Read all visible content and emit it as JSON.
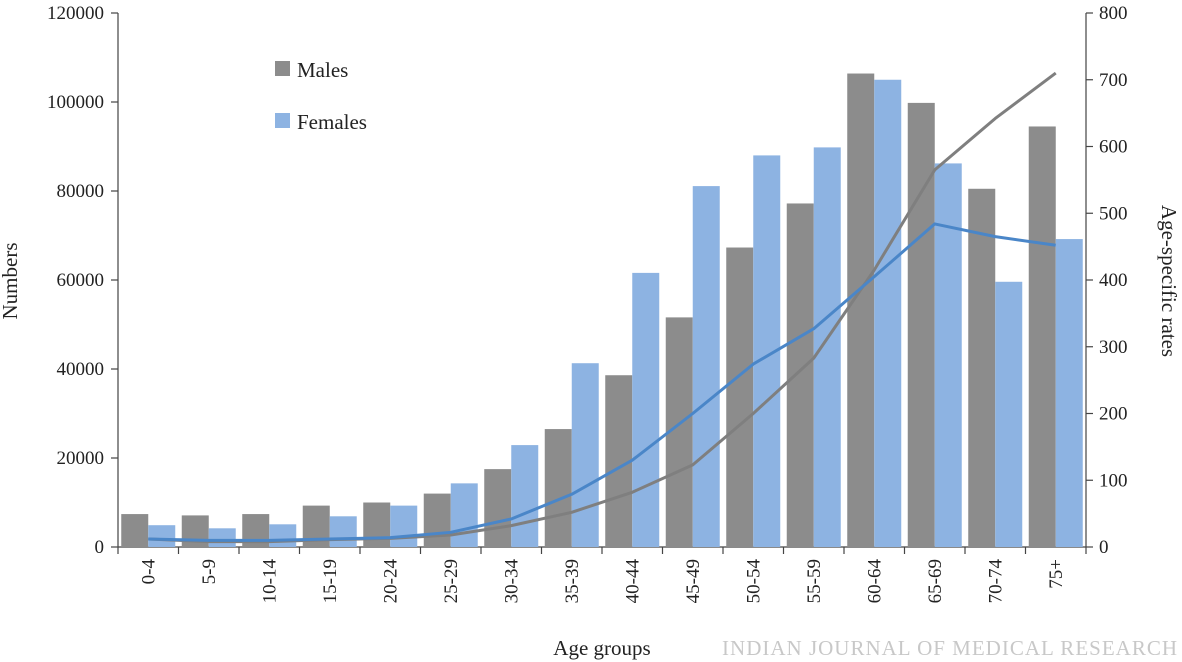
{
  "chart_data": {
    "type": "bar",
    "categories": [
      "0-4",
      "5-9",
      "10-14",
      "15-19",
      "20-24",
      "25-29",
      "30-34",
      "35-39",
      "40-44",
      "45-49",
      "50-54",
      "55-59",
      "60-64",
      "65-69",
      "70-74",
      "75+"
    ],
    "series": [
      {
        "name": "Males",
        "kind": "bar",
        "axis": "left",
        "color": "#8c8c8c",
        "values": [
          7400,
          7100,
          7400,
          9300,
          10000,
          12000,
          17500,
          26500,
          38600,
          51600,
          67300,
          77200,
          106400,
          99800,
          80500,
          94500
        ]
      },
      {
        "name": "Females",
        "kind": "bar",
        "axis": "left",
        "color": "#8db3e2",
        "values": [
          4900,
          4200,
          5100,
          6900,
          9300,
          14300,
          22900,
          41300,
          61600,
          81100,
          88000,
          89800,
          105000,
          86200,
          59600,
          69200
        ]
      },
      {
        "name": "Males rate",
        "kind": "line",
        "axis": "right",
        "color": "#7f7f7f",
        "values": [
          12,
          8,
          8,
          11,
          13,
          18,
          32,
          52,
          82,
          123,
          200,
          283,
          415,
          565,
          642,
          710
        ]
      },
      {
        "name": "Females rate",
        "kind": "line",
        "axis": "right",
        "color": "#4a86c8",
        "values": [
          12,
          10,
          10,
          12,
          14,
          22,
          42,
          79,
          130,
          200,
          274,
          327,
          405,
          484,
          465,
          452
        ]
      }
    ],
    "title": "",
    "xlabel": "Age groups",
    "ylabel": "Numbers",
    "y2label": "Age-specific rates",
    "ylim": [
      0,
      120000
    ],
    "y2lim": [
      0,
      800
    ],
    "yticks": [
      "0",
      "20000",
      "40000",
      "60000",
      "80000",
      "100000",
      "120000"
    ],
    "y2ticks": [
      "0",
      "100",
      "200",
      "300",
      "400",
      "500",
      "600",
      "700",
      "800"
    ],
    "legend": {
      "position": "top-left",
      "entries": [
        "Males",
        "Females"
      ]
    }
  },
  "watermark": "INDIAN JOURNAL OF MEDICAL RESEARCH"
}
